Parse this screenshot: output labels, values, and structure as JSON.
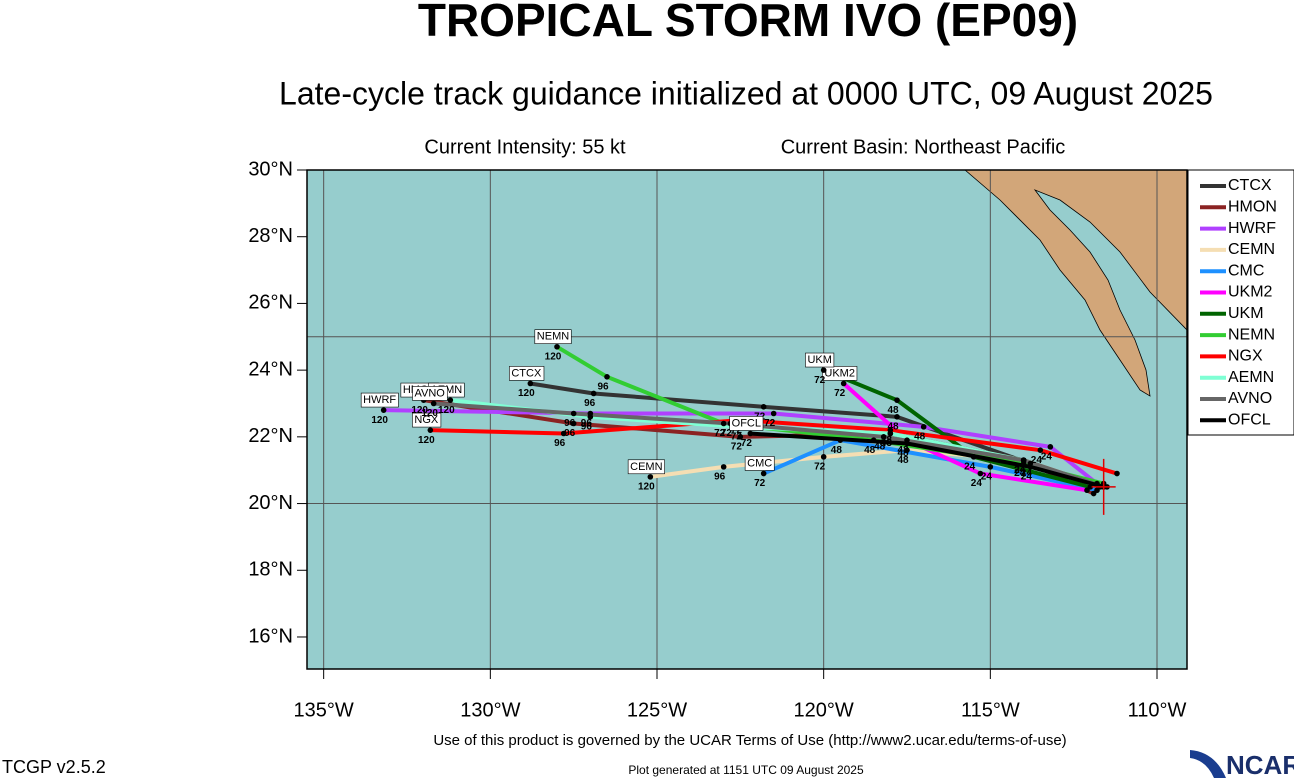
{
  "chart_data": {
    "type": "line",
    "title": "TROPICAL STORM IVO (EP09)",
    "subtitle": "Late-cycle track guidance initialized at 0000 UTC, 09 August 2025",
    "intensity": "Current Intensity: 55 kt",
    "basin": "Current Basin: Northeast Pacific",
    "terms": "Use of this product is governed by the UCAR Terms of Use (http://www2.ucar.edu/terms-of-use)",
    "version": "TCGP v2.5.2",
    "generated": "Plot generated at 1151 UTC   09 August 2025",
    "logo": "NCAR",
    "xlim": [
      -135.5,
      -109.1
    ],
    "ylim": [
      15.04,
      30
    ],
    "xticks": [
      {
        "value": -135,
        "label": "135°W"
      },
      {
        "value": -130,
        "label": "130°W"
      },
      {
        "value": -125,
        "label": "125°W"
      },
      {
        "value": -120,
        "label": "120°W"
      },
      {
        "value": -115,
        "label": "115°W"
      },
      {
        "value": -110,
        "label": "110°W"
      }
    ],
    "yticks": [
      {
        "value": 16,
        "label": "16°N"
      },
      {
        "value": 18,
        "label": "18°N"
      },
      {
        "value": 20,
        "label": "20°N"
      },
      {
        "value": 22,
        "label": "22°N"
      },
      {
        "value": 24,
        "label": "24°N"
      },
      {
        "value": 26,
        "label": "26°N"
      },
      {
        "value": 28,
        "label": "28°N"
      },
      {
        "value": 30,
        "label": "30°N"
      }
    ],
    "ygrid": [
      20,
      25
    ],
    "grid": true,
    "legend": "right",
    "hour_labels": [
      "24",
      "48",
      "72",
      "96",
      "120"
    ],
    "series": [
      {
        "name": "CTCX",
        "color": "#333333",
        "x": [
          -111.5,
          -113.8,
          -117.8,
          -121.8,
          -126.9,
          -128.8
        ],
        "y": [
          20.5,
          21.2,
          22.6,
          22.9,
          23.3,
          23.6
        ]
      },
      {
        "name": "HMON",
        "color": "#8b2323",
        "x": [
          -111.9,
          -114.0,
          -118.0,
          -122.5,
          -127.5,
          -132.0
        ],
        "y": [
          20.3,
          21.3,
          22.1,
          22.0,
          22.4,
          23.1
        ]
      },
      {
        "name": "HWRF",
        "color": "#b040ff",
        "x": [
          -111.8,
          -113.2,
          -117.0,
          -121.5,
          -127.0,
          -133.2
        ],
        "y": [
          20.6,
          21.7,
          22.3,
          22.7,
          22.7,
          22.8
        ]
      },
      {
        "name": "CEMN",
        "color": "#f5deb3",
        "x": [
          -111.6,
          -114.0,
          -117.5,
          -120.0,
          -123.0,
          -125.2
        ],
        "y": [
          20.5,
          21.3,
          21.6,
          21.4,
          21.1,
          20.8
        ]
      },
      {
        "name": "CMC",
        "color": "#1e90ff",
        "x": [
          -111.8,
          -115.0,
          -119.5,
          -121.8
        ],
        "y": [
          20.4,
          21.1,
          21.9,
          20.9
        ]
      },
      {
        "name": "UKM2",
        "color": "#ff00ff",
        "x": [
          -112.1,
          -115.3,
          -117.5,
          -119.4
        ],
        "y": [
          20.4,
          20.9,
          21.9,
          23.6
        ]
      },
      {
        "name": "UKM",
        "color": "#006400",
        "x": [
          -112.0,
          -115.5,
          -117.8,
          -120.0
        ],
        "y": [
          20.5,
          21.4,
          23.1,
          24.0
        ]
      },
      {
        "name": "NEMN",
        "color": "#32cd32",
        "x": [
          -111.6,
          -114.0,
          -118.5,
          -123.0,
          -126.5,
          -128.0
        ],
        "y": [
          20.6,
          21.2,
          21.9,
          22.4,
          23.8,
          24.7
        ]
      },
      {
        "name": "NGX",
        "color": "#ff0000",
        "x": [
          -111.2,
          -113.5,
          -118.0,
          -122.5,
          -127.8,
          -131.8
        ],
        "y": [
          20.9,
          21.6,
          22.2,
          22.5,
          22.1,
          22.2
        ]
      },
      {
        "name": "AEMN",
        "color": "#7fffd4",
        "x": [
          -111.7,
          -114.0,
          -118.0,
          -122.5,
          -127.0,
          -131.2
        ],
        "y": [
          20.5,
          21.3,
          22.1,
          22.3,
          22.6,
          23.1
        ]
      },
      {
        "name": "AVNO",
        "color": "#666666",
        "x": [
          -111.6,
          -114.0,
          -118.2,
          -122.8,
          -127.5,
          -131.7
        ],
        "y": [
          20.5,
          21.3,
          22.0,
          22.4,
          22.7,
          23.0
        ]
      },
      {
        "name": "OFCL",
        "color": "#000000",
        "x": [
          -111.6,
          -113.8,
          -117.5,
          -122.2
        ],
        "y": [
          20.5,
          21.1,
          21.8,
          22.1
        ]
      }
    ]
  }
}
